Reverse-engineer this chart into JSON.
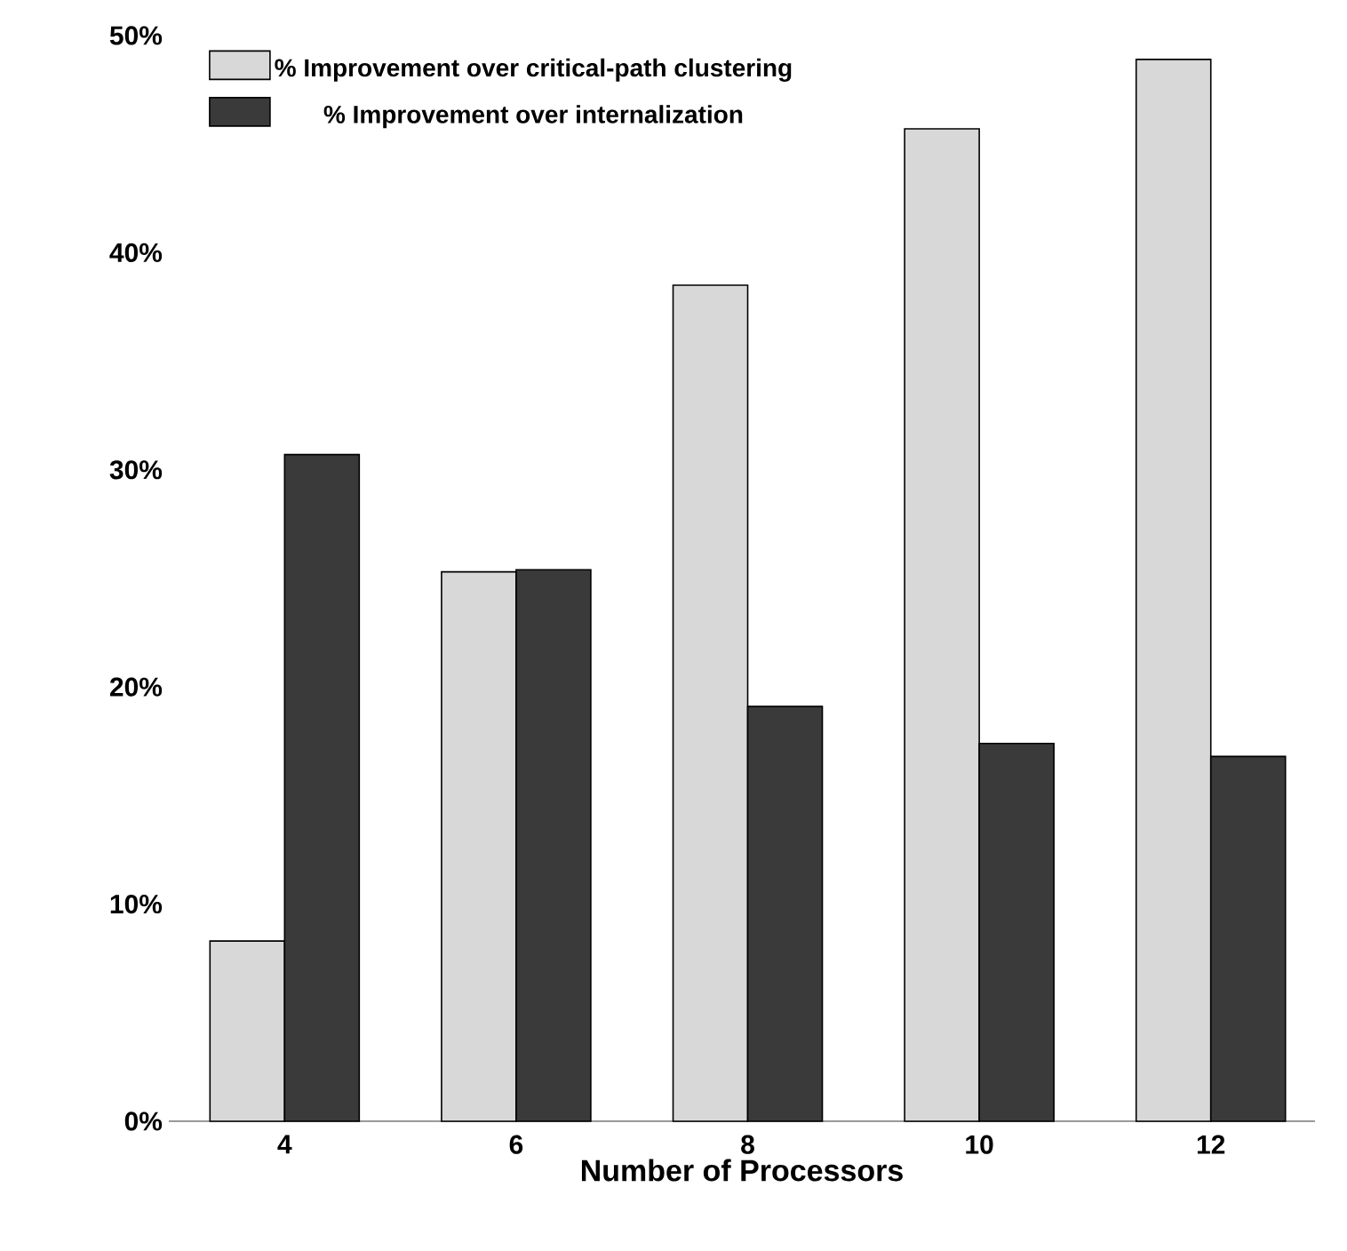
{
  "chart_data": {
    "type": "bar",
    "xlabel": "Number of Processors",
    "categories": [
      "4",
      "6",
      "8",
      "10",
      "12"
    ],
    "series": [
      {
        "name": "% Improvement over critical-path clustering",
        "color": "#d8d8d8",
        "values": [
          8.3,
          25.3,
          38.5,
          45.7,
          48.9
        ]
      },
      {
        "name": "% Improvement over internalization",
        "color": "#3a3a3a",
        "values": [
          30.7,
          25.4,
          19.1,
          17.4,
          16.8
        ]
      }
    ],
    "ylim": [
      0,
      50
    ],
    "yticks": [
      {
        "value": 0,
        "label": "0%"
      },
      {
        "value": 10,
        "label": "10%"
      },
      {
        "value": 20,
        "label": "20%"
      },
      {
        "value": 30,
        "label": "30%"
      },
      {
        "value": 40,
        "label": "40%"
      },
      {
        "value": 50,
        "label": "50%"
      }
    ],
    "legend": "top left",
    "grid": false
  }
}
